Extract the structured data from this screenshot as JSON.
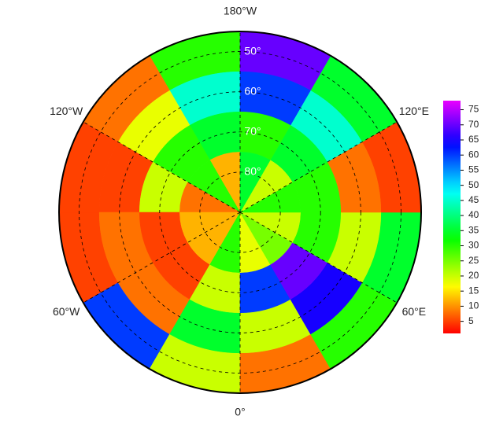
{
  "chart_data": {
    "type": "polar-heatmap",
    "latlim": [
      45,
      90
    ],
    "lat_bins": [
      45,
      55,
      65,
      75,
      90
    ],
    "lon_bins": [
      -180,
      -150,
      -120,
      -90,
      -60,
      -30,
      0,
      30,
      60,
      90,
      120,
      150,
      180
    ],
    "values": [
      [
        30,
        8,
        5,
        5,
        60,
        20,
        8,
        30,
        35,
        5,
        35,
        70
      ],
      [
        45,
        18,
        5,
        8,
        8,
        35,
        20,
        65,
        20,
        8,
        45,
        60
      ],
      [
        35,
        30,
        20,
        5,
        5,
        20,
        60,
        70,
        30,
        30,
        35,
        30
      ],
      [
        12,
        30,
        8,
        12,
        12,
        30,
        18,
        25,
        20,
        30,
        20,
        35
      ]
    ],
    "lat_ticks": [
      {
        "value": 50,
        "label": "50°"
      },
      {
        "value": 60,
        "label": "60°"
      },
      {
        "value": 70,
        "label": "70°"
      },
      {
        "value": 80,
        "label": "80°"
      }
    ],
    "lon_ticks": [
      {
        "value": 180,
        "label": "180°W"
      },
      {
        "value": 120,
        "label": "120°E"
      },
      {
        "value": 60,
        "label": "60°E"
      },
      {
        "value": 0,
        "label": "0°"
      },
      {
        "value": -60,
        "label": "60°W"
      },
      {
        "value": -120,
        "label": "120°W"
      }
    ],
    "colorbar": {
      "lim": [
        1,
        78
      ],
      "ticks": [
        5,
        10,
        15,
        20,
        25,
        30,
        35,
        40,
        45,
        50,
        55,
        60,
        65,
        70,
        75
      ]
    }
  }
}
